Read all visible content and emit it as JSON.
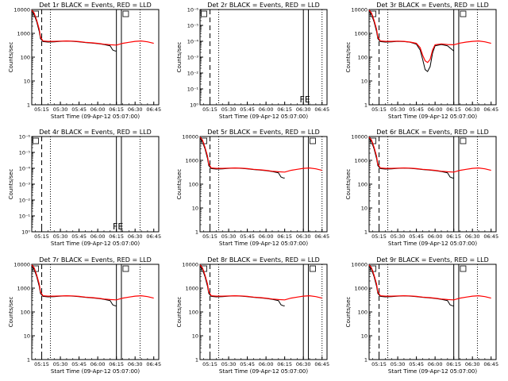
{
  "chart_data": {
    "type": "line",
    "layout": "3x3 grid",
    "shared": {
      "xticks": [
        "05:15",
        "05:30",
        "05:45",
        "06:00",
        "06:15",
        "06:30",
        "06:45"
      ],
      "xlim": [
        "05:07",
        "06:49"
      ],
      "xlabel": "Start Time (09-Apr-12 05:07:00)",
      "ylabel": "Counts/sec",
      "yscale": "log",
      "series": [
        {
          "name": "Events",
          "color": "#000000"
        },
        {
          "name": "LLD",
          "color": "#ff0000"
        }
      ],
      "vlines": [
        {
          "x": "05:15",
          "style": "dashed"
        },
        {
          "x": "05:22",
          "style": "dotted"
        },
        {
          "x": "06:15",
          "style": "solid"
        },
        {
          "x": "06:19",
          "style": "solid"
        },
        {
          "x": "06:34",
          "style": "dotted"
        }
      ]
    },
    "panels": [
      {
        "title": "Det 1r BLACK = Events, RED = LLD",
        "has_data": true,
        "yticks": [
          "1",
          "10",
          "100",
          "1000",
          "10000"
        ],
        "ylim": [
          1,
          10000
        ],
        "vlines_x": [
          "05:15",
          "05:22",
          "06:15",
          "06:19",
          "06:34"
        ],
        "marks": [
          "D",
          "E"
        ],
        "label": ""
      },
      {
        "title": "Det 2r BLACK = Events, RED = LLD",
        "has_data": false,
        "yticks": [
          "10⁰",
          "10⁻¹",
          "10⁻²",
          "10⁻³",
          "10⁻⁴",
          "10⁻⁵",
          "10⁻⁶"
        ],
        "ylim": [
          1e-06,
          1
        ],
        "vlines_x": [
          "05:15",
          "05:22",
          "06:30",
          "06:34",
          "06:45"
        ],
        "marks": [
          "D"
        ],
        "label": "FE"
      },
      {
        "title": "Det 3r BLACK = Events, RED = LLD",
        "has_data": true,
        "yticks": [
          "1",
          "10",
          "100",
          "1000",
          "10000"
        ],
        "ylim": [
          1,
          10000
        ],
        "vlines_x": [
          "05:15",
          "05:22",
          "06:15",
          "06:19",
          "06:34"
        ],
        "marks": [
          "D",
          "E"
        ],
        "label": ""
      },
      {
        "title": "Det 4r BLACK = Events, RED = LLD",
        "has_data": false,
        "yticks": [
          "10⁰",
          "10⁻¹",
          "10⁻²",
          "10⁻³",
          "10⁻⁴",
          "10⁻⁵",
          "10⁻⁶"
        ],
        "ylim": [
          1e-06,
          1
        ],
        "vlines_x": [
          "05:15",
          "05:22",
          "06:15",
          "06:19",
          "06:34"
        ],
        "marks": [
          "D"
        ],
        "label": "FE"
      },
      {
        "title": "Det 5r BLACK = Events, RED = LLD",
        "has_data": true,
        "yticks": [
          "1",
          "10",
          "100",
          "1000",
          "10000"
        ],
        "ylim": [
          1,
          10000
        ],
        "vlines_x": [
          "05:15",
          "05:22",
          "06:30",
          "06:34",
          "06:45"
        ],
        "marks": [
          "D",
          "E"
        ],
        "label": ""
      },
      {
        "title": "Det 6r BLACK = Events, RED = LLD",
        "has_data": true,
        "yticks": [
          "1",
          "10",
          "100",
          "1000",
          "10000"
        ],
        "ylim": [
          1,
          10000
        ],
        "vlines_x": [
          "05:15",
          "05:22",
          "06:15",
          "06:19",
          "06:34"
        ],
        "marks": [
          "D",
          "E"
        ],
        "label": ""
      },
      {
        "title": "Det 7r BLACK = Events, RED = LLD",
        "has_data": true,
        "yticks": [
          "1",
          "10",
          "100",
          "1000",
          "10000"
        ],
        "ylim": [
          1,
          10000
        ],
        "vlines_x": [
          "05:15",
          "05:22",
          "06:15",
          "06:19",
          "06:34"
        ],
        "marks": [
          "D",
          "E"
        ],
        "label": ""
      },
      {
        "title": "Det 8r BLACK = Events, RED = LLD",
        "has_data": true,
        "yticks": [
          "1",
          "10",
          "100",
          "1000",
          "10000"
        ],
        "ylim": [
          1,
          10000
        ],
        "vlines_x": [
          "05:15",
          "05:22",
          "06:30",
          "06:34",
          "06:45"
        ],
        "marks": [
          "D",
          "E"
        ],
        "label": ""
      },
      {
        "title": "Det 9r BLACK = Events, RED = LLD",
        "has_data": true,
        "yticks": [
          "1",
          "10",
          "100",
          "1000",
          "10000"
        ],
        "ylim": [
          1,
          10000
        ],
        "vlines_x": [
          "05:15",
          "05:22",
          "06:15",
          "06:19",
          "06:34"
        ],
        "marks": [
          "D",
          "E"
        ],
        "label": ""
      }
    ],
    "events_series": {
      "x": [
        "05:07",
        "05:09",
        "05:11",
        "05:13",
        "05:14",
        "05:16",
        "05:20",
        "05:25",
        "05:30",
        "05:35",
        "05:40",
        "05:45",
        "05:50",
        "05:55",
        "06:00",
        "06:05",
        "06:10",
        "06:12",
        "06:14",
        "06:15"
      ],
      "y": [
        9000,
        6000,
        3000,
        1200,
        600,
        450,
        430,
        440,
        460,
        470,
        460,
        440,
        410,
        390,
        370,
        340,
        300,
        200,
        180,
        180
      ]
    },
    "lld_series": {
      "x": [
        "05:07",
        "05:09",
        "05:11",
        "05:13",
        "05:14",
        "05:16",
        "05:20",
        "05:25",
        "05:30",
        "05:35",
        "05:40",
        "05:45",
        "05:50",
        "05:55",
        "06:00",
        "06:05",
        "06:10",
        "06:15",
        "06:20",
        "06:25",
        "06:30",
        "06:35",
        "06:40",
        "06:45"
      ],
      "y": [
        9500,
        7000,
        3500,
        1500,
        700,
        480,
        460,
        460,
        470,
        480,
        470,
        450,
        420,
        400,
        380,
        350,
        330,
        320,
        380,
        420,
        460,
        480,
        440,
        380
      ]
    },
    "det3_events_series": {
      "x": [
        "05:07",
        "05:09",
        "05:11",
        "05:13",
        "05:14",
        "05:16",
        "05:20",
        "05:25",
        "05:30",
        "05:35",
        "05:40",
        "05:45",
        "05:48",
        "05:50",
        "05:52",
        "05:54",
        "05:56",
        "05:58",
        "06:00",
        "06:05",
        "06:10",
        "06:15"
      ],
      "y": [
        9000,
        6000,
        3000,
        1200,
        600,
        450,
        430,
        440,
        460,
        450,
        420,
        350,
        200,
        80,
        30,
        25,
        40,
        150,
        300,
        340,
        300,
        180
      ]
    },
    "det3_lld_series": {
      "x": [
        "05:07",
        "05:09",
        "05:11",
        "05:13",
        "05:14",
        "05:16",
        "05:20",
        "05:25",
        "05:30",
        "05:35",
        "05:40",
        "05:45",
        "05:48",
        "05:50",
        "05:52",
        "05:54",
        "05:56",
        "05:58",
        "06:00",
        "06:05",
        "06:10",
        "06:15",
        "06:20",
        "06:25",
        "06:30",
        "06:35",
        "06:40",
        "06:45"
      ],
      "y": [
        9500,
        7000,
        3500,
        1500,
        700,
        480,
        460,
        460,
        470,
        460,
        430,
        380,
        250,
        120,
        70,
        60,
        80,
        200,
        330,
        360,
        340,
        330,
        390,
        430,
        460,
        480,
        440,
        380
      ]
    }
  }
}
